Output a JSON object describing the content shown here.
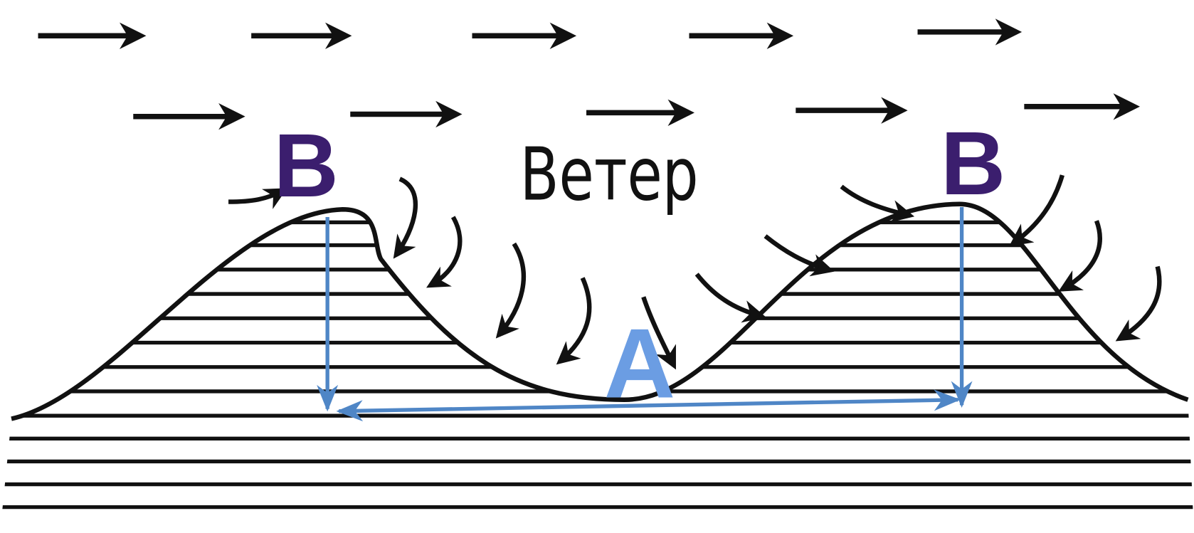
{
  "labels": {
    "wind": "Ветер",
    "crest_left": "B",
    "crest_right": "B",
    "length": "A"
  }
}
